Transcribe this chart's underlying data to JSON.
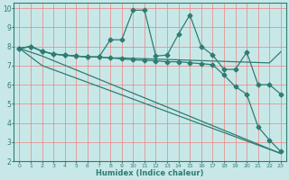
{
  "xlabel": "Humidex (Indice chaleur)",
  "bg_color": "#c8e8e8",
  "line_color": "#2e7d72",
  "grid_color": "#f08080",
  "xlim": [
    -0.5,
    23.5
  ],
  "ylim": [
    2,
    10.3
  ],
  "xticks": [
    0,
    1,
    2,
    3,
    4,
    5,
    6,
    7,
    8,
    9,
    10,
    11,
    12,
    13,
    14,
    15,
    16,
    17,
    18,
    19,
    20,
    21,
    22,
    23
  ],
  "yticks": [
    2,
    3,
    4,
    5,
    6,
    7,
    8,
    9,
    10
  ],
  "line_flat1": {
    "x": [
      0,
      1,
      2,
      3,
      4,
      5,
      6,
      7,
      8,
      9,
      10,
      11,
      12,
      13,
      14,
      15,
      16,
      17,
      18,
      19,
      20,
      21,
      22,
      23
    ],
    "y": [
      7.9,
      8.0,
      7.75,
      7.6,
      7.55,
      7.5,
      7.45,
      7.45,
      7.4,
      7.4,
      7.38,
      7.36,
      7.34,
      7.32,
      7.3,
      7.28,
      7.26,
      7.24,
      7.22,
      7.2,
      7.18,
      7.16,
      7.14,
      7.72
    ],
    "markers": false
  },
  "line_wavy": {
    "x": [
      0,
      1,
      2,
      3,
      4,
      5,
      6,
      7,
      8,
      9,
      10,
      11,
      12,
      13,
      14,
      15,
      16,
      17,
      18,
      19,
      20,
      21,
      22,
      23
    ],
    "y": [
      7.9,
      8.0,
      7.75,
      7.6,
      7.55,
      7.5,
      7.45,
      7.45,
      8.35,
      8.35,
      9.9,
      9.9,
      7.5,
      7.55,
      8.65,
      9.65,
      8.0,
      7.55,
      6.8,
      6.8,
      7.7,
      6.0,
      6.0,
      5.5
    ],
    "markers": true
  },
  "line_med_decline": {
    "x": [
      0,
      1,
      2,
      3,
      4,
      5,
      6,
      7,
      8,
      9,
      10,
      11,
      12,
      13,
      14,
      15,
      16,
      17,
      18,
      19,
      20,
      21,
      22,
      23
    ],
    "y": [
      7.9,
      8.0,
      7.75,
      7.6,
      7.55,
      7.5,
      7.45,
      7.45,
      7.4,
      7.35,
      7.3,
      7.28,
      7.25,
      7.2,
      7.2,
      7.15,
      7.1,
      7.05,
      6.5,
      5.9,
      5.5,
      3.8,
      3.1,
      2.5
    ],
    "markers": true
  },
  "line_steep": {
    "x": [
      0,
      2,
      23
    ],
    "y": [
      7.9,
      7.5,
      2.4
    ],
    "markers": false
  },
  "line_steeper": {
    "x": [
      0,
      2,
      23
    ],
    "y": [
      7.9,
      7.0,
      2.4
    ],
    "markers": false
  }
}
